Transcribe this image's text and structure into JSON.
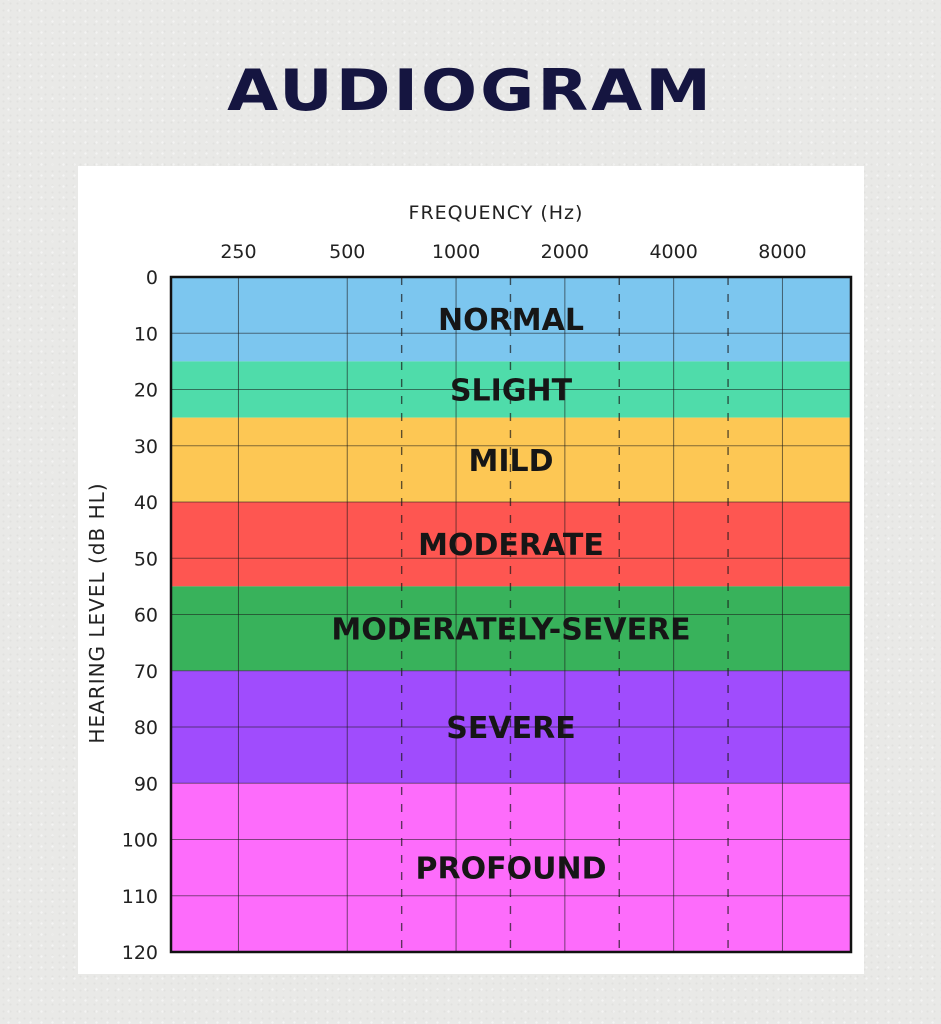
{
  "title": "AUDIOGRAM",
  "chart_data": {
    "type": "heatmap",
    "title": "AUDIOGRAM",
    "xlabel": "FREQUENCY (Hz)",
    "ylabel": "HEARING LEVEL (dB HL)",
    "x_ticks": [
      "250",
      "500",
      "1000",
      "2000",
      "4000",
      "8000"
    ],
    "y_ticks": [
      0,
      10,
      20,
      30,
      40,
      50,
      60,
      70,
      80,
      90,
      100,
      110,
      120
    ],
    "ylim": [
      0,
      120
    ],
    "y_inverted": true,
    "grid": true,
    "bands": [
      {
        "label": "NORMAL",
        "from": 0,
        "to": 15,
        "color": "#7cc6ef"
      },
      {
        "label": "SLIGHT",
        "from": 15,
        "to": 25,
        "color": "#4fdcaa"
      },
      {
        "label": "MILD",
        "from": 25,
        "to": 40,
        "color": "#fdc754"
      },
      {
        "label": "MODERATE",
        "from": 40,
        "to": 55,
        "color": "#fe5651"
      },
      {
        "label": "MODERATELY-SEVERE",
        "from": 55,
        "to": 70,
        "color": "#38b25b"
      },
      {
        "label": "SEVERE",
        "from": 70,
        "to": 90,
        "color": "#a04cfd"
      },
      {
        "label": "PROFOUND",
        "from": 90,
        "to": 120,
        "color": "#fd6cfb"
      }
    ]
  }
}
